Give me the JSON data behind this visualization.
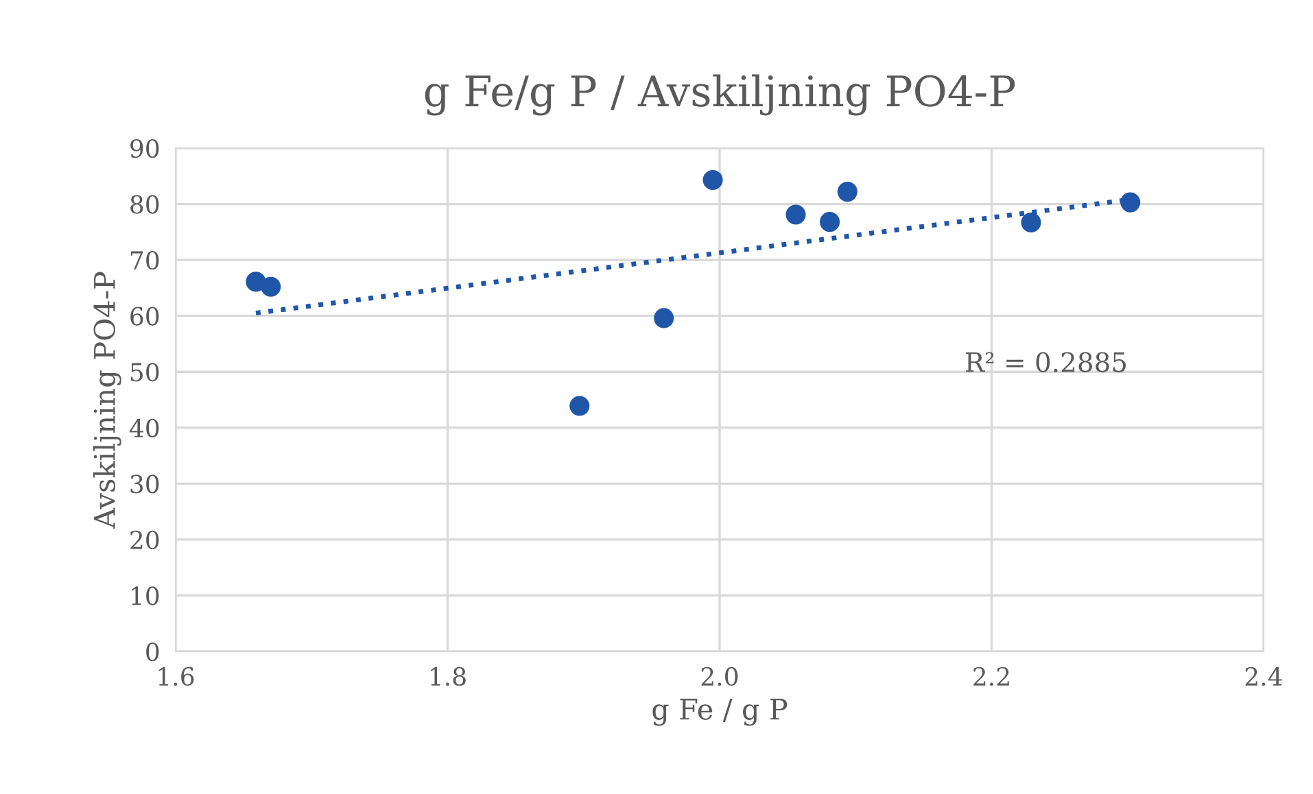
{
  "chart_data": {
    "type": "scatter",
    "title": "g Fe/g P / Avskiljning PO4-P",
    "xlabel": "g Fe / g P",
    "ylabel": "Avskiljning PO4-P",
    "xlim": [
      1.6,
      2.4
    ],
    "xticks": [
      {
        "value": 1.6,
        "label": "1.6"
      },
      {
        "value": 1.8,
        "label": "1.8"
      },
      {
        "value": 2.0,
        "label": "2.0"
      },
      {
        "value": 2.2,
        "label": "2.2"
      },
      {
        "value": 2.4,
        "label": "2.4"
      }
    ],
    "ylim": [
      0,
      90
    ],
    "yticks": [
      0,
      10,
      20,
      30,
      40,
      50,
      60,
      70,
      80,
      90
    ],
    "grid": true,
    "legend": false,
    "marker": "circle",
    "series": [
      {
        "color": "#1f56a8",
        "x": [
          1.659,
          1.67,
          1.897,
          1.959,
          1.995,
          2.056,
          2.081,
          2.094,
          2.229,
          2.302
        ],
        "values": [
          66.1,
          65.2,
          43.9,
          59.6,
          84.3,
          78.1,
          76.8,
          82.2,
          76.7,
          80.3
        ]
      },
      {
        "type": "line",
        "color": "#1f56a8",
        "marker": "none",
        "line_style": "dotted",
        "x": [
          1.659,
          2.302
        ],
        "values": [
          60.5,
          80.8
        ]
      }
    ],
    "annotations": [
      "R² = 0.2885"
    ]
  }
}
